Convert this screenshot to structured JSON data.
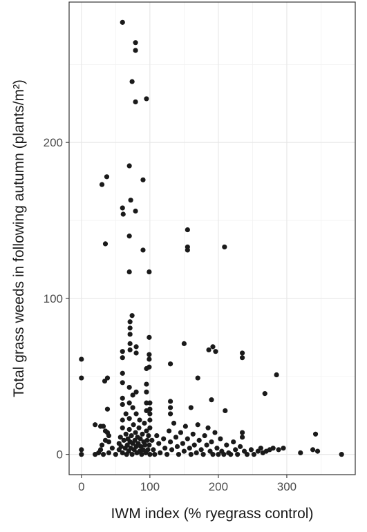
{
  "chart_data": {
    "type": "scatter",
    "title": "",
    "xlabel": "IWM index (% ryegrass control)",
    "ylabel": "Total grass weeds in following autumn (plants/m²)",
    "xlim": [
      -18,
      400
    ],
    "ylim": [
      -13,
      290
    ],
    "x_ticks": [
      0,
      100,
      200,
      300
    ],
    "y_ticks": [
      0,
      100,
      200
    ],
    "x_tick_labels": [
      "0",
      "100",
      "200",
      "300"
    ],
    "y_tick_labels": [
      "0",
      "100",
      "200"
    ],
    "grid": true,
    "legend": "none",
    "point_color": "#1a1a1a",
    "series": [
      {
        "points": [
          [
            60,
            277
          ],
          [
            79,
            264
          ],
          [
            79,
            259
          ],
          [
            74,
            239
          ],
          [
            79,
            226
          ],
          [
            95,
            228
          ],
          [
            70,
            185
          ],
          [
            90,
            176
          ],
          [
            37,
            178
          ],
          [
            30,
            173
          ],
          [
            72,
            163
          ],
          [
            60,
            158
          ],
          [
            61,
            154
          ],
          [
            79,
            156
          ],
          [
            70,
            140
          ],
          [
            35,
            135
          ],
          [
            90,
            131
          ],
          [
            155,
            144
          ],
          [
            155,
            133
          ],
          [
            155,
            131
          ],
          [
            209,
            133
          ],
          [
            70,
            117
          ],
          [
            99,
            117
          ],
          [
            0,
            61
          ],
          [
            0,
            49
          ],
          [
            34,
            47
          ],
          [
            38,
            49
          ],
          [
            0,
            3
          ],
          [
            0,
            0
          ],
          [
            74,
            89
          ],
          [
            71,
            85
          ],
          [
            71,
            81
          ],
          [
            71,
            77
          ],
          [
            71,
            71
          ],
          [
            71,
            67
          ],
          [
            60,
            66
          ],
          [
            60,
            62
          ],
          [
            80,
            69
          ],
          [
            80,
            65
          ],
          [
            99,
            75
          ],
          [
            99,
            64
          ],
          [
            99,
            61
          ],
          [
            99,
            56
          ],
          [
            95,
            55
          ],
          [
            60,
            52
          ],
          [
            60,
            46
          ],
          [
            70,
            43
          ],
          [
            80,
            40
          ],
          [
            75,
            38
          ],
          [
            95,
            45
          ],
          [
            95,
            40
          ],
          [
            130,
            58
          ],
          [
            150,
            71
          ],
          [
            186,
            67
          ],
          [
            192,
            69
          ],
          [
            196,
            66
          ],
          [
            235,
            65
          ],
          [
            235,
            62
          ],
          [
            285,
            51
          ],
          [
            170,
            49
          ],
          [
            190,
            35
          ],
          [
            210,
            28
          ],
          [
            268,
            39
          ],
          [
            160,
            30
          ],
          [
            130,
            34
          ],
          [
            130,
            30
          ],
          [
            130,
            26
          ],
          [
            100,
            33
          ],
          [
            100,
            29
          ],
          [
            100,
            26
          ],
          [
            100,
            22
          ],
          [
            95,
            33
          ],
          [
            95,
            28
          ],
          [
            60,
            36
          ],
          [
            60,
            32
          ],
          [
            65,
            26
          ],
          [
            70,
            33
          ],
          [
            75,
            30
          ],
          [
            80,
            26
          ],
          [
            85,
            22
          ],
          [
            70,
            23
          ],
          [
            60,
            22
          ],
          [
            60,
            17
          ],
          [
            38,
            29
          ],
          [
            20,
            19
          ],
          [
            28,
            18
          ],
          [
            32,
            18
          ],
          [
            35,
            15
          ],
          [
            38,
            14
          ],
          [
            40,
            12
          ],
          [
            40,
            8
          ],
          [
            35,
            9
          ],
          [
            30,
            6
          ],
          [
            28,
            3
          ],
          [
            25,
            1
          ],
          [
            20,
            0
          ],
          [
            32,
            0
          ],
          [
            40,
            1
          ],
          [
            45,
            4
          ],
          [
            50,
            0
          ],
          [
            55,
            3
          ],
          [
            55,
            7
          ],
          [
            57,
            11
          ],
          [
            58,
            5
          ],
          [
            60,
            1
          ],
          [
            62,
            9
          ],
          [
            64,
            4
          ],
          [
            65,
            13
          ],
          [
            66,
            0
          ],
          [
            67,
            6
          ],
          [
            68,
            10
          ],
          [
            69,
            2
          ],
          [
            70,
            16
          ],
          [
            71,
            8
          ],
          [
            72,
            4
          ],
          [
            73,
            12
          ],
          [
            74,
            0
          ],
          [
            75,
            7
          ],
          [
            76,
            19
          ],
          [
            77,
            3
          ],
          [
            78,
            9
          ],
          [
            79,
            14
          ],
          [
            80,
            5
          ],
          [
            81,
            1
          ],
          [
            82,
            11
          ],
          [
            83,
            7
          ],
          [
            84,
            17
          ],
          [
            85,
            2
          ],
          [
            86,
            10
          ],
          [
            87,
            5
          ],
          [
            88,
            0
          ],
          [
            89,
            13
          ],
          [
            90,
            3
          ],
          [
            91,
            8
          ],
          [
            92,
            20
          ],
          [
            93,
            6
          ],
          [
            94,
            1
          ],
          [
            95,
            15
          ],
          [
            96,
            9
          ],
          [
            97,
            3
          ],
          [
            98,
            12
          ],
          [
            99,
            6
          ],
          [
            100,
            0
          ],
          [
            100,
            17
          ],
          [
            103,
            9
          ],
          [
            105,
            3
          ],
          [
            107,
            0
          ],
          [
            110,
            12
          ],
          [
            113,
            7
          ],
          [
            115,
            1
          ],
          [
            120,
            10
          ],
          [
            122,
            4
          ],
          [
            125,
            0
          ],
          [
            128,
            15
          ],
          [
            130,
            8
          ],
          [
            132,
            3
          ],
          [
            135,
            20
          ],
          [
            138,
            11
          ],
          [
            140,
            5
          ],
          [
            142,
            0
          ],
          [
            145,
            14
          ],
          [
            148,
            7
          ],
          [
            150,
            2
          ],
          [
            152,
            18
          ],
          [
            155,
            10
          ],
          [
            158,
            4
          ],
          [
            160,
            0
          ],
          [
            163,
            13
          ],
          [
            165,
            6
          ],
          [
            168,
            1
          ],
          [
            170,
            19
          ],
          [
            172,
            9
          ],
          [
            175,
            3
          ],
          [
            178,
            0
          ],
          [
            180,
            12
          ],
          [
            183,
            6
          ],
          [
            185,
            17
          ],
          [
            188,
            2
          ],
          [
            190,
            8
          ],
          [
            192,
            0
          ],
          [
            195,
            14
          ],
          [
            198,
            4
          ],
          [
            200,
            0
          ],
          [
            203,
            10
          ],
          [
            205,
            2
          ],
          [
            208,
            0
          ],
          [
            212,
            6
          ],
          [
            215,
            1
          ],
          [
            218,
            0
          ],
          [
            222,
            8
          ],
          [
            225,
            3
          ],
          [
            228,
            0
          ],
          [
            232,
            5
          ],
          [
            235,
            14
          ],
          [
            235,
            11
          ],
          [
            238,
            2
          ],
          [
            242,
            0
          ],
          [
            248,
            3
          ],
          [
            252,
            0
          ],
          [
            258,
            2
          ],
          [
            262,
            4
          ],
          [
            265,
            1
          ],
          [
            270,
            2
          ],
          [
            275,
            3
          ],
          [
            280,
            4
          ],
          [
            288,
            3
          ],
          [
            295,
            4
          ],
          [
            320,
            1
          ],
          [
            338,
            3
          ],
          [
            342,
            13
          ],
          [
            345,
            2
          ],
          [
            380,
            0
          ]
        ]
      }
    ]
  }
}
